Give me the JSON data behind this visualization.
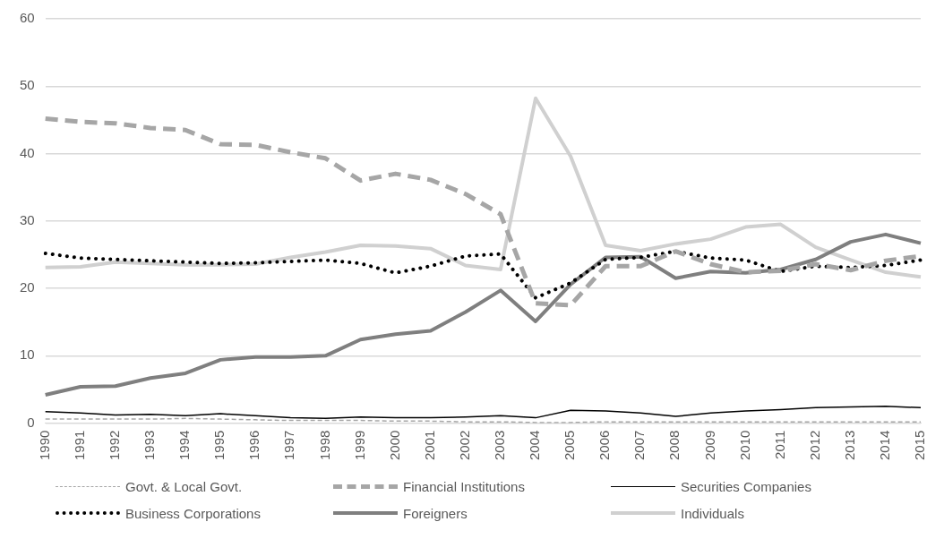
{
  "chart_data": {
    "type": "line",
    "categories": [
      "1990",
      "1991",
      "1992",
      "1993",
      "1994",
      "1995",
      "1996",
      "1997",
      "1998",
      "1999",
      "2000",
      "2001",
      "2002",
      "2003",
      "2004",
      "2005",
      "2006",
      "2007",
      "2008",
      "2009",
      "2010",
      "2011",
      "2012",
      "2013",
      "2014",
      "2015"
    ],
    "ylim": [
      0,
      60
    ],
    "yticks": [
      0,
      10,
      20,
      30,
      40,
      50,
      60
    ],
    "grid": "y",
    "legend": "bottom",
    "marker": "none",
    "series": [
      {
        "name": "Govt. & Local Govt.",
        "color": "#a6a6a6",
        "line_style": "dashed",
        "values": [
          0.6,
          0.6,
          0.6,
          0.6,
          0.7,
          0.6,
          0.5,
          0.4,
          0.4,
          0.4,
          0.3,
          0.3,
          0.2,
          0.2,
          0.1,
          0.1,
          0.2,
          0.2,
          0.2,
          0.2,
          0.2,
          0.2,
          0.2,
          0.2,
          0.2,
          0.2
        ]
      },
      {
        "name": "Financial Institutions",
        "color": "#a6a6a6",
        "line_style": "dashed",
        "values": [
          45.2,
          44.7,
          44.5,
          43.8,
          43.5,
          41.4,
          41.3,
          40.2,
          39.3,
          36.0,
          37.0,
          36.1,
          34.0,
          31.0,
          17.8,
          17.5,
          23.3,
          23.3,
          25.5,
          23.6,
          22.4,
          22.6,
          23.6,
          22.7,
          24.1,
          24.8
        ]
      },
      {
        "name": "Securities Companies",
        "color": "#000000",
        "line_style": "solid",
        "values": [
          1.7,
          1.5,
          1.2,
          1.3,
          1.1,
          1.4,
          1.1,
          0.8,
          0.7,
          0.9,
          0.8,
          0.8,
          0.9,
          1.1,
          0.8,
          1.9,
          1.8,
          1.5,
          1.0,
          1.5,
          1.8,
          2.0,
          2.3,
          2.4,
          2.5,
          2.3
        ]
      },
      {
        "name": "Business Corporations",
        "color": "#000000",
        "line_style": "dotted",
        "values": [
          25.2,
          24.5,
          24.3,
          24.1,
          23.9,
          23.7,
          23.8,
          24.0,
          24.2,
          23.7,
          22.3,
          23.3,
          24.8,
          25.1,
          18.6,
          20.8,
          24.3,
          24.6,
          25.5,
          24.5,
          24.2,
          22.5,
          23.3,
          23.1,
          23.4,
          24.2
        ]
      },
      {
        "name": "Foreigners",
        "color": "#7f7f7f",
        "line_style": "solid",
        "values": [
          4.2,
          5.4,
          5.5,
          6.7,
          7.4,
          9.4,
          9.8,
          9.8,
          10.0,
          12.4,
          13.2,
          13.7,
          16.5,
          19.7,
          15.1,
          20.6,
          24.6,
          24.7,
          21.5,
          22.5,
          22.3,
          22.8,
          24.3,
          26.9,
          28.0,
          26.7
        ]
      },
      {
        "name": "Individuals",
        "color": "#d0d0d0",
        "line_style": "solid",
        "values": [
          23.1,
          23.2,
          23.9,
          23.7,
          23.5,
          23.5,
          23.6,
          24.6,
          25.4,
          26.4,
          26.3,
          25.9,
          23.4,
          22.8,
          48.2,
          39.6,
          26.4,
          25.6,
          26.6,
          27.3,
          29.1,
          29.5,
          26.1,
          24.2,
          22.4,
          21.7
        ]
      }
    ]
  }
}
